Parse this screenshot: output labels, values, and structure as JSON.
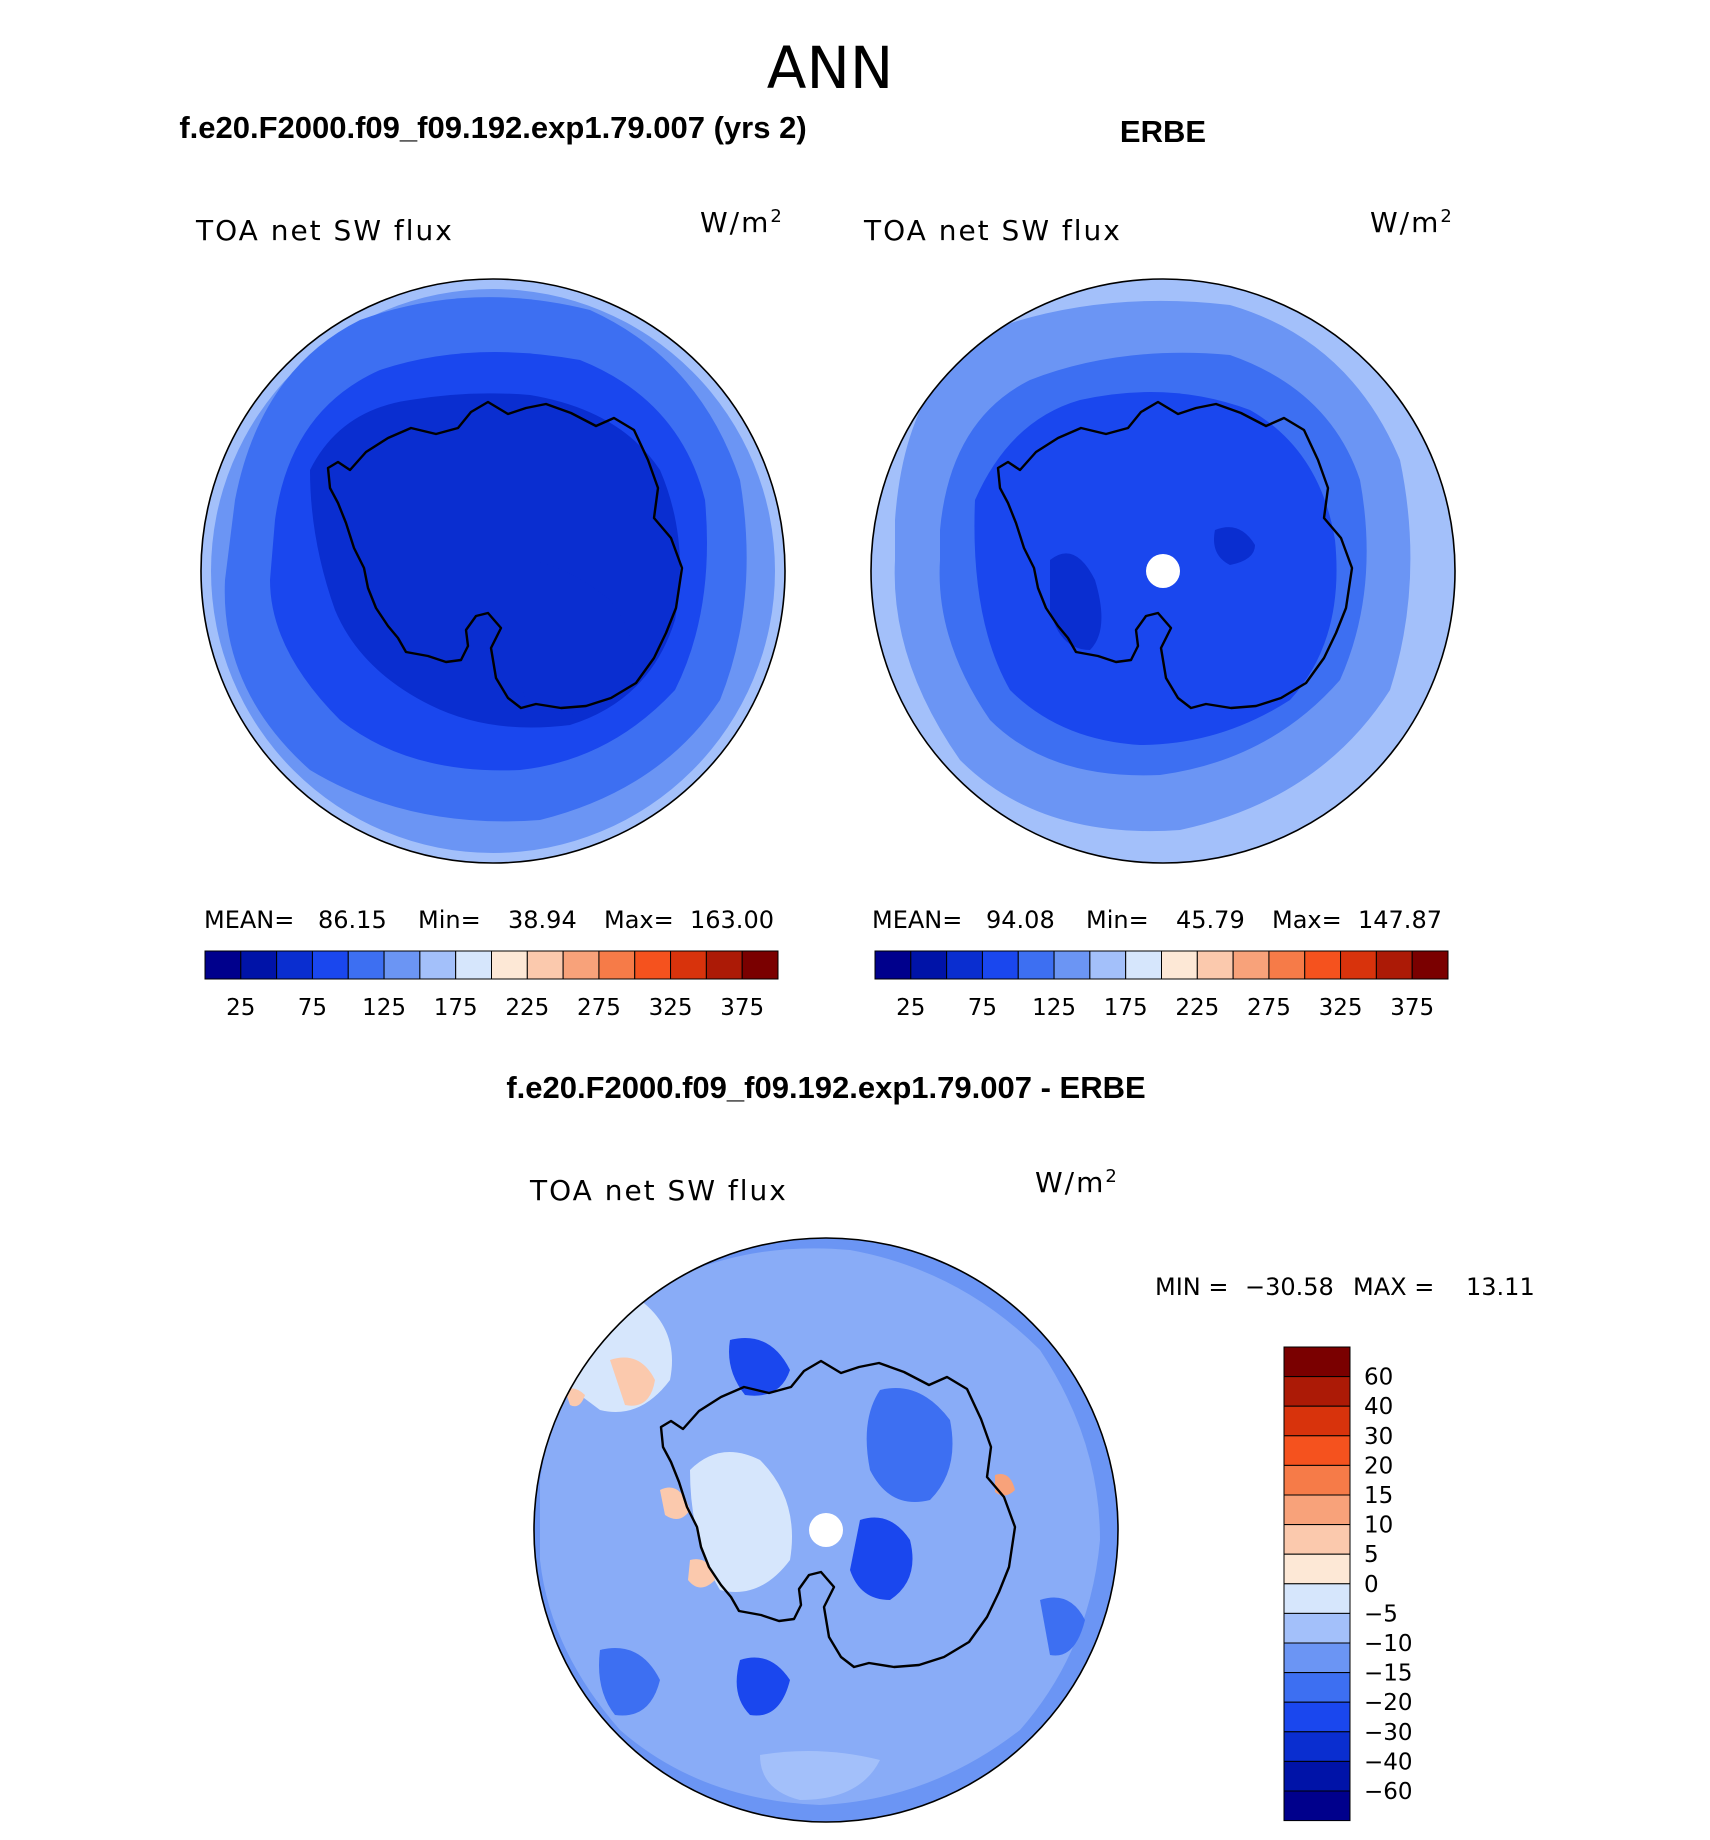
{
  "figure": {
    "title": "ANN",
    "colors": {
      "seq16": [
        "#00008c",
        "#0013a8",
        "#0a2ed0",
        "#1a47ee",
        "#3d6ff2",
        "#6b95f4",
        "#a3c0fa",
        "#d6e6fc",
        "#fde8d6",
        "#fbc9ad",
        "#f8a27a",
        "#f67b48",
        "#f5521e",
        "#d8330c",
        "#ac1a06",
        "#7a0000"
      ],
      "diff": [
        "#00008c",
        "#0013a8",
        "#0a2ed0",
        "#1a47ee",
        "#3d6ff2",
        "#6b95f4",
        "#a3c0fa",
        "#d6e6fc",
        "#fde8d6",
        "#fbc9ad",
        "#f8a27a",
        "#f67b48",
        "#f5521e",
        "#d8330c",
        "#ac1a06",
        "#7a0000"
      ]
    },
    "panels": [
      {
        "id": "model",
        "header": "f.e20.F2000.f09_f09.192.exp1.79.007 (yrs 2)",
        "field_label": "TOA net SW flux",
        "units_base": "W/m",
        "units_sup": "2",
        "stats": {
          "mean_label": "MEAN=",
          "mean": "86.15",
          "min_label": "Min=",
          "min": "38.94",
          "max_label": "Max=",
          "max": "163.00"
        },
        "colorbar_ticks": [
          "25",
          "75",
          "125",
          "175",
          "225",
          "275",
          "325",
          "375"
        ]
      },
      {
        "id": "obs",
        "header": "ERBE",
        "field_label": "TOA net SW flux",
        "units_base": "W/m",
        "units_sup": "2",
        "stats": {
          "mean_label": "MEAN=",
          "mean": "94.08",
          "min_label": "Min=",
          "min": "45.79",
          "max_label": "Max=",
          "max": "147.87"
        },
        "colorbar_ticks": [
          "25",
          "75",
          "125",
          "175",
          "225",
          "275",
          "325",
          "375"
        ]
      }
    ],
    "difference": {
      "header": "f.e20.F2000.f09_f09.192.exp1.79.007 - ERBE",
      "field_label": "TOA net SW flux",
      "units_base": "W/m",
      "units_sup": "2",
      "stats": {
        "min_label": "MIN =",
        "min": "−30.58",
        "max_label": "MAX =",
        "max": "13.11"
      },
      "colorbar_labels": [
        "60",
        "40",
        "30",
        "20",
        "15",
        "10",
        "5",
        "0",
        "−5",
        "−10",
        "−15",
        "−20",
        "−30",
        "−40",
        "−60"
      ]
    }
  },
  "chart_data": [
    {
      "type": "heatmap",
      "projection": "south polar stereographic",
      "title": "TOA net SW flux",
      "subtitle": "f.e20.F2000.f09_f09.192.exp1.79.007 (yrs 2)",
      "units": "W/m2",
      "mean": 86.15,
      "min": 38.94,
      "max": 163.0,
      "colorbar_ticks": [
        25,
        75,
        125,
        175,
        225,
        275,
        325,
        375
      ],
      "contour_levels": [
        25,
        50,
        75,
        100,
        125,
        150,
        175,
        200,
        225,
        250,
        275,
        300,
        325,
        350,
        375
      ]
    },
    {
      "type": "heatmap",
      "projection": "south polar stereographic",
      "title": "TOA net SW flux",
      "subtitle": "ERBE",
      "units": "W/m2",
      "mean": 94.08,
      "min": 45.79,
      "max": 147.87,
      "colorbar_ticks": [
        25,
        75,
        125,
        175,
        225,
        275,
        325,
        375
      ],
      "contour_levels": [
        25,
        50,
        75,
        100,
        125,
        150,
        175,
        200,
        225,
        250,
        275,
        300,
        325,
        350,
        375
      ]
    },
    {
      "type": "heatmap",
      "projection": "south polar stereographic",
      "title": "TOA net SW flux",
      "subtitle": "f.e20.F2000.f09_f09.192.exp1.79.007 - ERBE",
      "units": "W/m2",
      "min": -30.58,
      "max": 13.11,
      "contour_levels": [
        -60,
        -40,
        -30,
        -20,
        -15,
        -10,
        -5,
        0,
        5,
        10,
        15,
        20,
        30,
        40,
        60
      ]
    }
  ]
}
